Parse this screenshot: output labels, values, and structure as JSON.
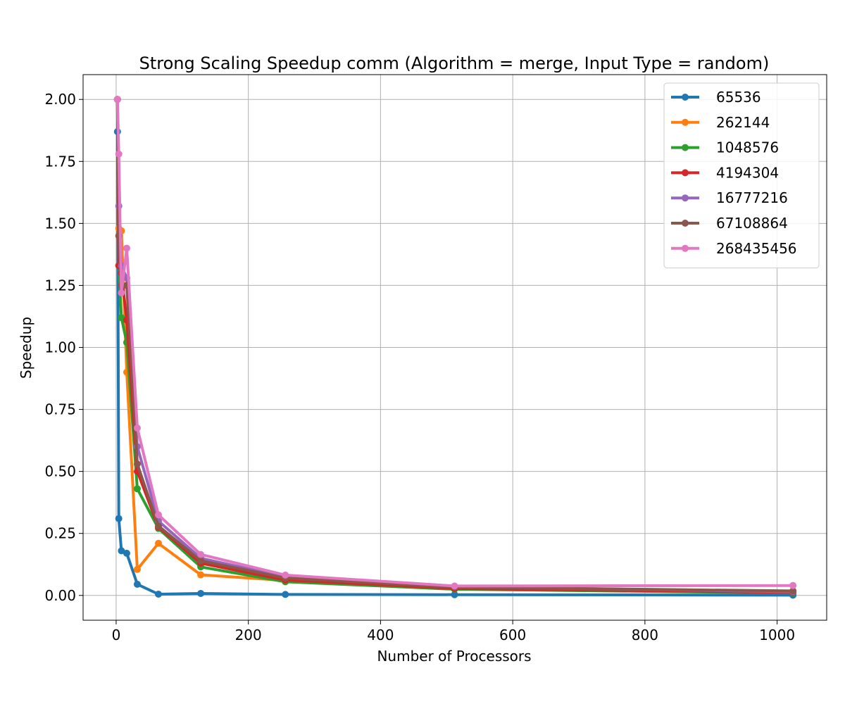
{
  "chart_data": {
    "type": "line",
    "title": "Strong Scaling Speedup comm (Algorithm = merge, Input Type = random)",
    "xlabel": "Number of Processors",
    "ylabel": "Speedup",
    "xlim": [
      -50,
      1075
    ],
    "ylim": [
      -0.1,
      2.1
    ],
    "xticks": [
      0,
      200,
      400,
      600,
      800,
      1000
    ],
    "yticks": [
      0.0,
      0.25,
      0.5,
      0.75,
      1.0,
      1.25,
      1.5,
      1.75,
      2.0
    ],
    "xtick_labels": [
      "0",
      "200",
      "400",
      "600",
      "800",
      "1000"
    ],
    "ytick_labels": [
      "0.00",
      "0.25",
      "0.50",
      "0.75",
      "1.00",
      "1.25",
      "1.50",
      "1.75",
      "2.00"
    ],
    "grid": true,
    "legend_position": "top-right",
    "x": [
      2,
      4,
      8,
      16,
      32,
      64,
      128,
      256,
      512,
      1024
    ],
    "series": [
      {
        "name": "65536",
        "color": "#1f77b4",
        "values": [
          1.87,
          0.31,
          0.18,
          0.17,
          0.045,
          0.005,
          0.008,
          0.004,
          0.003,
          0.001
        ]
      },
      {
        "name": "262144",
        "color": "#ff7f0e",
        "values": [
          2.0,
          1.48,
          1.47,
          0.9,
          0.105,
          0.21,
          0.083,
          0.06,
          0.03,
          0.012
        ]
      },
      {
        "name": "1048576",
        "color": "#2ca02c",
        "values": [
          2.0,
          1.33,
          1.12,
          1.02,
          0.43,
          0.27,
          0.115,
          0.055,
          0.025,
          0.01
        ]
      },
      {
        "name": "4194304",
        "color": "#d62728",
        "values": [
          2.0,
          1.33,
          1.3,
          1.11,
          0.5,
          0.275,
          0.13,
          0.062,
          0.028,
          0.012
        ]
      },
      {
        "name": "16777216",
        "color": "#9467bd",
        "values": [
          2.0,
          1.57,
          1.33,
          1.28,
          0.6,
          0.3,
          0.15,
          0.075,
          0.035,
          0.015
        ]
      },
      {
        "name": "67108864",
        "color": "#8c564b",
        "values": [
          2.0,
          1.45,
          1.25,
          1.25,
          0.53,
          0.28,
          0.14,
          0.07,
          0.033,
          0.018
        ]
      },
      {
        "name": "268435456",
        "color": "#e377c2",
        "values": [
          2.0,
          1.78,
          1.22,
          1.4,
          0.675,
          0.325,
          0.165,
          0.082,
          0.038,
          0.04
        ]
      }
    ]
  }
}
